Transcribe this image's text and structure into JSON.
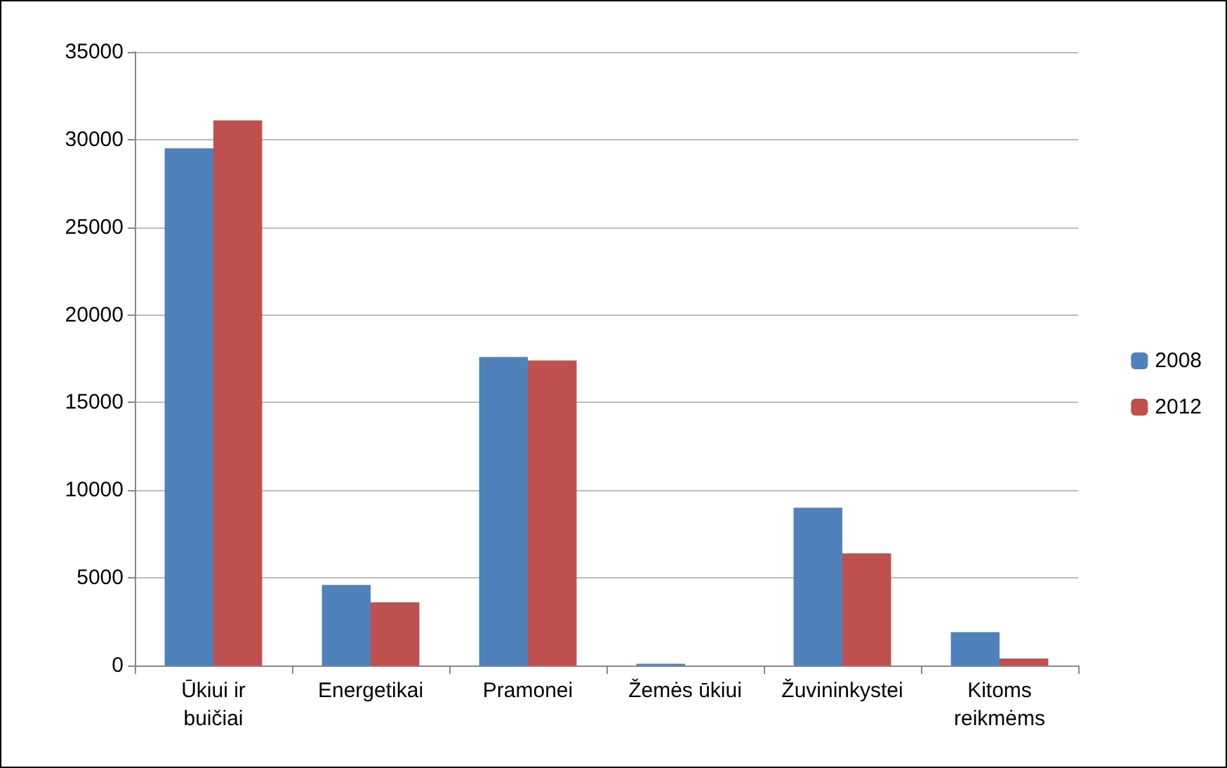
{
  "chart_data": {
    "type": "bar",
    "categories": [
      "Ūkiui ir buičiai",
      "Energetikai",
      "Pramonei",
      "Žemės ūkiui",
      "Žuvininkystei",
      "Kitoms reikmėms"
    ],
    "series": [
      {
        "name": "2008",
        "color": "#4f81bd",
        "values": [
          29500,
          4600,
          17600,
          100,
          9000,
          1900
        ]
      },
      {
        "name": "2012",
        "color": "#c0504d",
        "values": [
          31100,
          3600,
          17400,
          0,
          6400,
          400
        ]
      }
    ],
    "ylim": [
      0,
      35000
    ],
    "yticks": [
      0,
      5000,
      10000,
      15000,
      20000,
      25000,
      30000,
      35000
    ],
    "grid": "y",
    "legend": "right"
  }
}
